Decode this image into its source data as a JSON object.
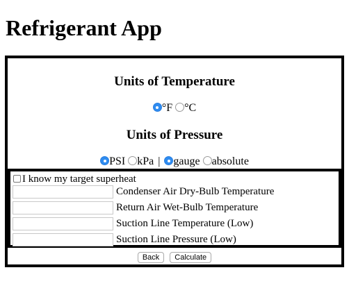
{
  "app": {
    "title": "Refrigerant App"
  },
  "temperature": {
    "heading": "Units of Temperature",
    "options": [
      {
        "label": "°F",
        "selected": true
      },
      {
        "label": "°C",
        "selected": false
      }
    ]
  },
  "pressure": {
    "heading": "Units of Pressure",
    "unit_options": [
      {
        "label": "PSI",
        "selected": true
      },
      {
        "label": "kPa",
        "selected": false
      }
    ],
    "separator": "|",
    "mode_options": [
      {
        "label": "gauge",
        "selected": true
      },
      {
        "label": "absolute",
        "selected": false
      }
    ]
  },
  "inputs": {
    "superheat_checkbox_label": "I know my target superheat",
    "fields": [
      {
        "label": "Condenser Air Dry-Bulb Temperature",
        "value": ""
      },
      {
        "label": "Return Air Wet-Bulb Temperature",
        "value": ""
      },
      {
        "label": "Suction Line Temperature (Low)",
        "value": ""
      },
      {
        "label": "Suction Line Pressure (Low)",
        "value": ""
      }
    ]
  },
  "buttons": {
    "back": "Back",
    "calculate": "Calculate"
  }
}
